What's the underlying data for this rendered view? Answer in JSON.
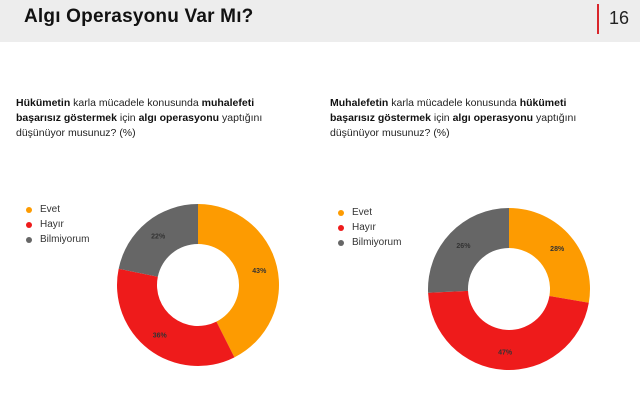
{
  "header": {
    "title": "Algı Operasyonu Var Mı?",
    "page_number": "16"
  },
  "colors": {
    "evet": "#fd9b01",
    "hayir": "#ee1b1b",
    "bilmiyorum": "#666666"
  },
  "chart_data": [
    {
      "type": "pie",
      "donut": true,
      "question": {
        "parts": [
          {
            "text": "Hükümetin",
            "bold": true
          },
          {
            "text": " karla mücadele konusunda ",
            "bold": false
          },
          {
            "text": "muhalefeti başarısız göstermek",
            "bold": true
          },
          {
            "text": " için ",
            "bold": false
          },
          {
            "text": "algı operasyonu",
            "bold": true
          },
          {
            "text": " yaptığını düşünüyor musunuz? (%)",
            "bold": false
          }
        ]
      },
      "legend": [
        "Evet",
        "Hayır",
        "Bilmiyorum"
      ],
      "slices": [
        {
          "label": "Evet",
          "value": 43,
          "display": "43%",
          "color": "#fd9b01"
        },
        {
          "label": "Hayır",
          "value": 36,
          "display": "36%",
          "color": "#ee1b1b"
        },
        {
          "label": "Bilmiyorum",
          "value": 22,
          "display": "22%",
          "color": "#666666"
        }
      ]
    },
    {
      "type": "pie",
      "donut": true,
      "question": {
        "parts": [
          {
            "text": "Muhalefetin",
            "bold": true
          },
          {
            "text": " karla mücadele konusunda ",
            "bold": false
          },
          {
            "text": "hükümeti başarısız göstermek",
            "bold": true
          },
          {
            "text": " için ",
            "bold": false
          },
          {
            "text": "algı operasyonu",
            "bold": true
          },
          {
            "text": " yaptığını düşünüyor musunuz? (%)",
            "bold": false
          }
        ]
      },
      "legend": [
        "Evet",
        "Hayır",
        "Bilmiyorum"
      ],
      "slices": [
        {
          "label": "Evet",
          "value": 28,
          "display": "28%",
          "color": "#fd9b01"
        },
        {
          "label": "Hayır",
          "value": 47,
          "display": "47%",
          "color": "#ee1b1b"
        },
        {
          "label": "Bilmiyorum",
          "value": 26,
          "display": "26%",
          "color": "#666666"
        }
      ]
    }
  ]
}
